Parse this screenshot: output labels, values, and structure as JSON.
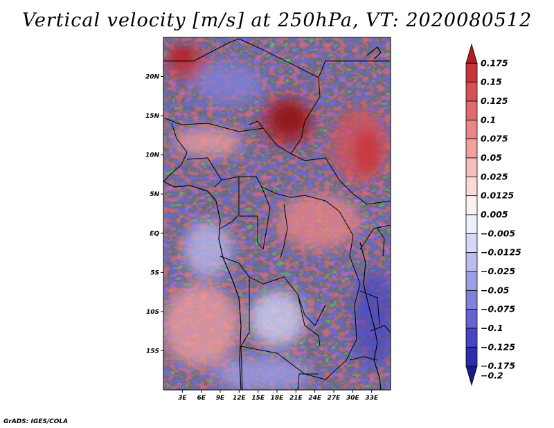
{
  "title": "Vertical velocity [m/s] at 250hPa, VT: 2020080512",
  "credit": "GrADS: IGES/COLA",
  "map": {
    "lon_range": [
      0,
      36
    ],
    "lat_range": [
      -20,
      25
    ],
    "lon_ticks": [
      "3E",
      "6E",
      "9E",
      "12E",
      "15E",
      "18E",
      "21E",
      "24E",
      "27E",
      "30E",
      "33E"
    ],
    "lat_ticks": [
      "20N",
      "15N",
      "10N",
      "5N",
      "EQ",
      "5S",
      "10S",
      "15S"
    ],
    "field": "vertical velocity",
    "features": {
      "strong_ascent_center": "Chad / Sudan border near 15N 18E-20E",
      "ascent_band": "Ethiopian highlands 10N-15N 28E-35E",
      "descent_region": "East Africa coast / Mozambique channel 10S-20S 30E-35E"
    }
  },
  "colorbar": {
    "labels": [
      "0.175",
      "0.15",
      "0.125",
      "0.1",
      "0.075",
      "0.05",
      "0.025",
      "0.0125",
      "0.005",
      "−0.005",
      "−0.0125",
      "−0.025",
      "−0.05",
      "−0.075",
      "−0.1",
      "−0.125",
      "−0.175",
      "−0.2"
    ],
    "colors": [
      "#b01c22",
      "#c8343a",
      "#d85055",
      "#e36a6c",
      "#ec8587",
      "#f2a0a0",
      "#f7bcbc",
      "#fad8d8",
      "#fdf0f0",
      "#f0f0fd",
      "#d6d6f6",
      "#bcbcf0",
      "#9f9fe8",
      "#8181dd",
      "#6363d2",
      "#4646c2",
      "#2d2db0",
      "#1a1a8a"
    ]
  }
}
